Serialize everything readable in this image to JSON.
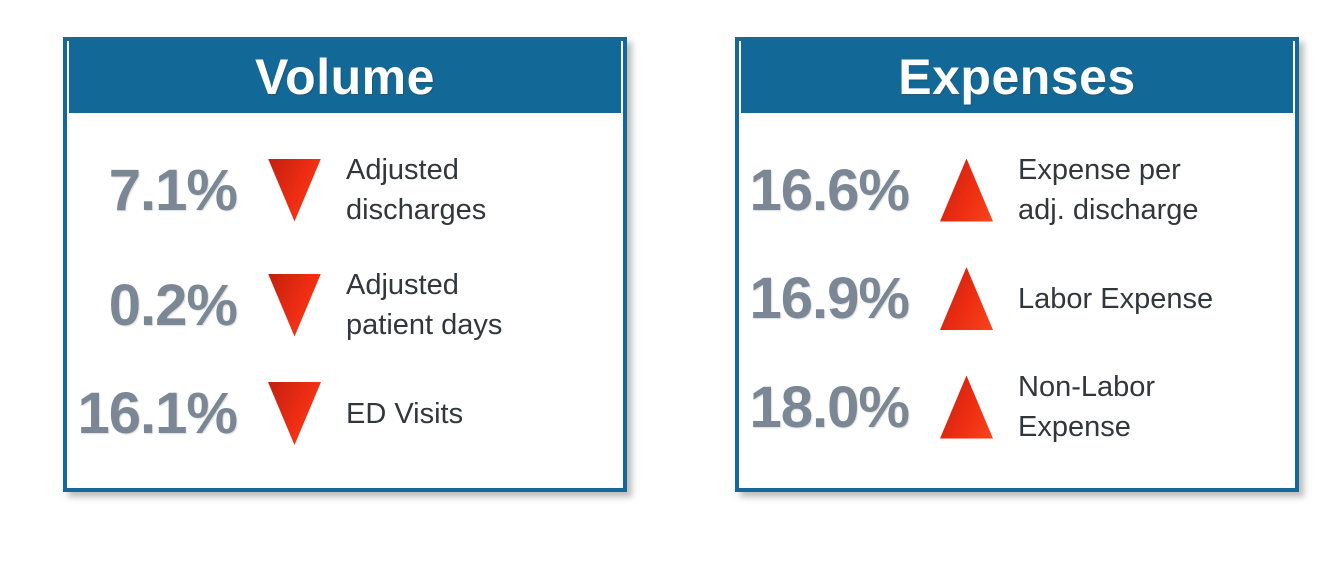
{
  "colors": {
    "header_blue": "#126896",
    "border_blue": "#15689A",
    "percent_gray": "#7C8795",
    "label_dark": "#31373D",
    "arrow_red": "#E02513"
  },
  "panels": [
    {
      "title": "Volume",
      "metrics": [
        {
          "value": "7.1%",
          "direction": "down",
          "label": "Adjusted\ndischarges"
        },
        {
          "value": "0.2%",
          "direction": "down",
          "label": "Adjusted\npatient days"
        },
        {
          "value": "16.1%",
          "direction": "down",
          "label": "ED Visits"
        }
      ]
    },
    {
      "title": "Expenses",
      "metrics": [
        {
          "value": "16.6%",
          "direction": "up",
          "label": "Expense per\nadj. discharge"
        },
        {
          "value": "16.9%",
          "direction": "up",
          "label": "Labor Expense"
        },
        {
          "value": "18.0%",
          "direction": "up",
          "label": "Non-Labor\nExpense"
        }
      ]
    }
  ],
  "chart_data": [
    {
      "type": "table",
      "title": "Volume",
      "categories": [
        "Adjusted discharges",
        "Adjusted patient days",
        "ED Visits"
      ],
      "values": [
        -7.1,
        -0.2,
        -16.1
      ],
      "value_labels": [
        "7.1%",
        "0.2%",
        "16.1%"
      ],
      "directions": [
        "down",
        "down",
        "down"
      ]
    },
    {
      "type": "table",
      "title": "Expenses",
      "categories": [
        "Expense per adj. discharge",
        "Labor Expense",
        "Non-Labor Expense"
      ],
      "values": [
        16.6,
        16.9,
        18.0
      ],
      "value_labels": [
        "16.6%",
        "16.9%",
        "18.0%"
      ],
      "directions": [
        "up",
        "up",
        "up"
      ]
    }
  ]
}
